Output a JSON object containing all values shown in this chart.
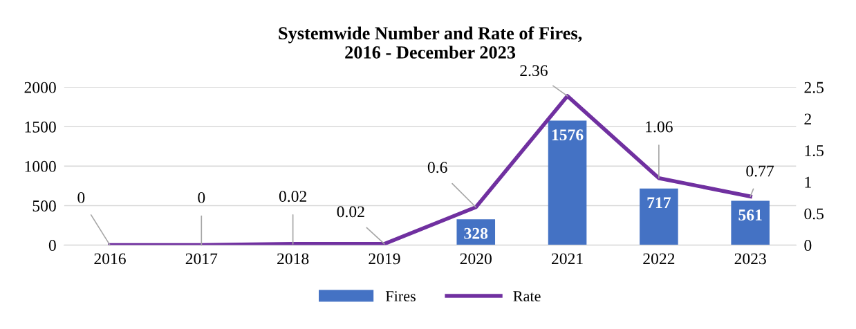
{
  "chart_data": {
    "type": "bar",
    "title": "Systemwide Number and Rate of Fires,\n2016 - December 2023",
    "categories": [
      "2016",
      "2017",
      "2018",
      "2019",
      "2020",
      "2021",
      "2022",
      "2023"
    ],
    "series": [
      {
        "name": "Fires",
        "color": "#4472c4",
        "values": [
          0,
          0,
          0,
          null,
          328,
          1576,
          717,
          561
        ],
        "value_labels": [
          null,
          null,
          null,
          null,
          "328",
          "1576",
          "717",
          "561"
        ]
      },
      {
        "name": "Rate",
        "type": "line",
        "axis": "y2",
        "color": "#7030a0",
        "values": [
          0,
          0,
          0.02,
          0.02,
          0.6,
          2.36,
          1.06,
          0.77
        ],
        "data_labels": true
      }
    ],
    "ylim": [
      0,
      2000
    ],
    "yticks": [
      0,
      500,
      1000,
      1500,
      2000
    ],
    "y2lim": [
      0,
      2.5
    ],
    "y2ticks": [
      0,
      0.5,
      1,
      1.5,
      2,
      2.5
    ],
    "grid": "y",
    "legend": "bottom",
    "marker": "none",
    "line_style": "solid"
  }
}
